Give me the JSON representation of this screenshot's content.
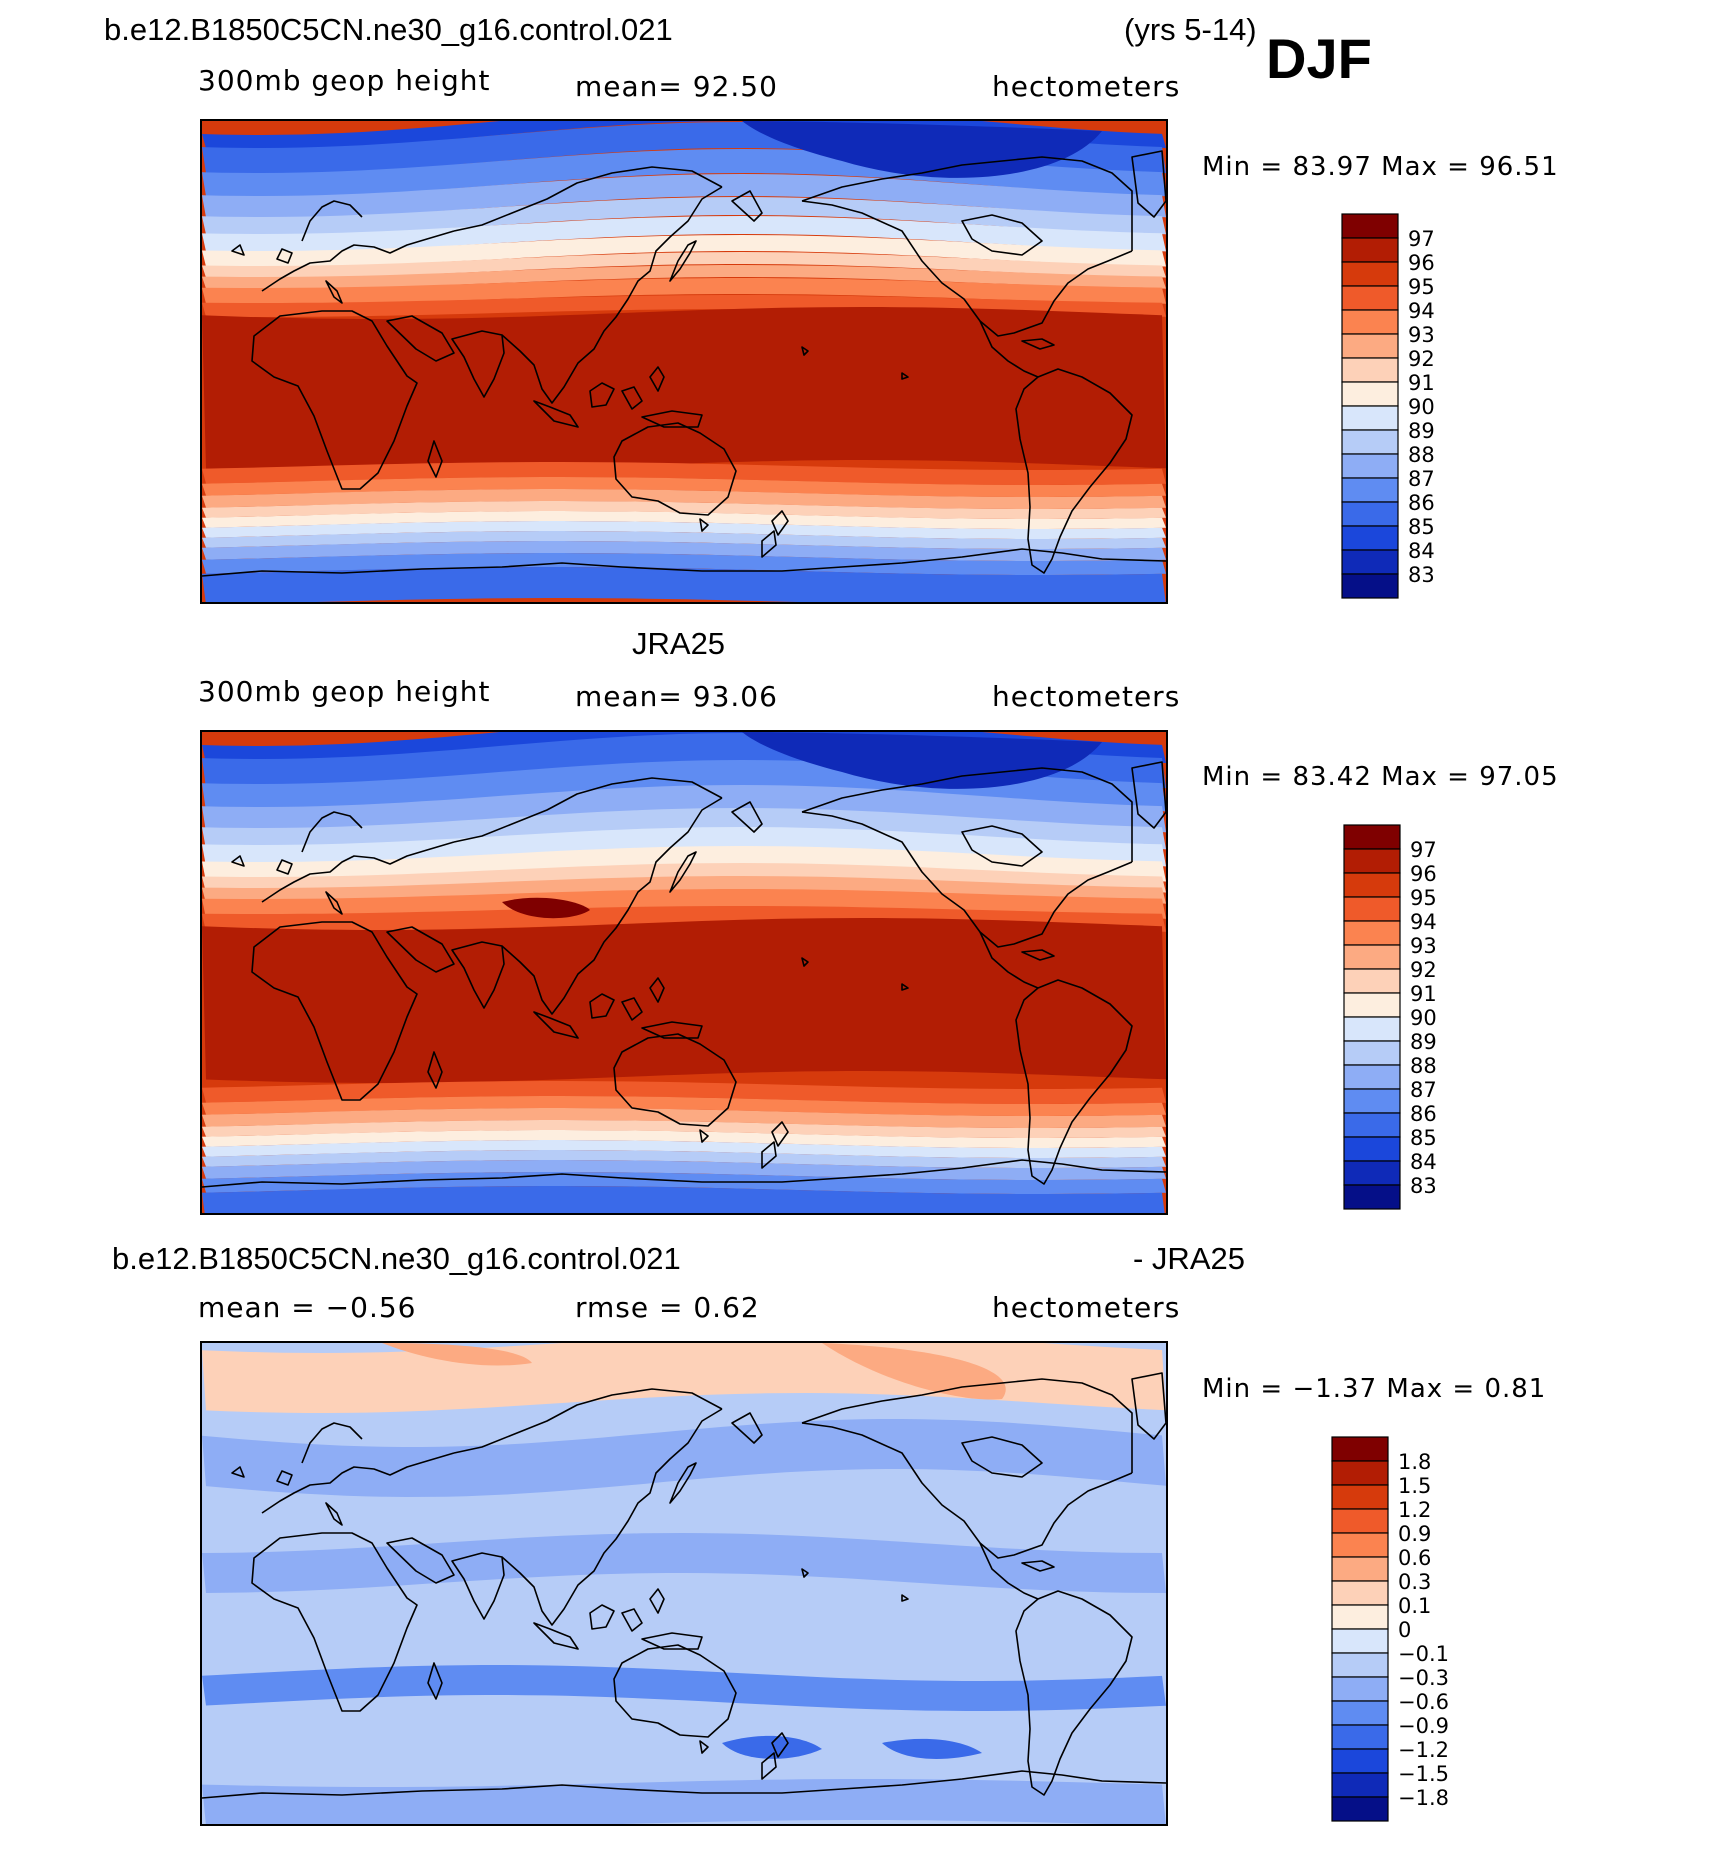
{
  "figure": {
    "title_case": "b.e12.B1850C5CN.ne30_g16.control.021",
    "years": "(yrs 5-14)",
    "season": "DJF"
  },
  "panels": [
    {
      "id": "model",
      "heading": "",
      "left_label": "300mb  geop  height",
      "center_label": "mean=   92.50",
      "right_label": "hectometers",
      "minmax": "Min  =    83.97  Max  =    96.51"
    },
    {
      "id": "obs",
      "heading": "JRA25",
      "left_label": "300mb  geop  height",
      "center_label": "mean=   93.06",
      "right_label": "hectometers",
      "minmax": "Min  =    83.42  Max  =    97.05"
    },
    {
      "id": "diff",
      "heading_left": "b.e12.B1850C5CN.ne30_g16.control.021",
      "heading_right": "- JRA25",
      "left_label": "mean  =   −0.56",
      "center_label": "rmse  =    0.62",
      "right_label": "hectometers",
      "minmax": "Min  =   −1.37  Max  =     0.81"
    }
  ],
  "chart_data": [
    {
      "type": "filled-contour-map",
      "title": "b.e12.B1850C5CN.ne30_g16.control.021  300mb geop height DJF (yrs 5-14)",
      "units": "hectometers",
      "mean": 92.5,
      "min": 83.97,
      "max": 96.51,
      "colorbar_levels": [
        "97",
        "96",
        "95",
        "94",
        "93",
        "92",
        "91",
        "90",
        "89",
        "88",
        "87",
        "86",
        "85",
        "84",
        "83"
      ],
      "colorbar_colors": [
        "#7f0000",
        "#b21d04",
        "#d63a0c",
        "#ef5a2a",
        "#fb8350",
        "#fcaa82",
        "#fdd1b8",
        "#fdeedf",
        "#d8e6fb",
        "#b6ccf7",
        "#8eadf5",
        "#5f8cf2",
        "#3a6ae9",
        "#1b47db",
        "#0f2ab8",
        "#050f88"
      ]
    },
    {
      "type": "filled-contour-map",
      "title": "JRA25  300mb geop height DJF",
      "units": "hectometers",
      "mean": 93.06,
      "min": 83.42,
      "max": 97.05,
      "colorbar_levels": [
        "97",
        "96",
        "95",
        "94",
        "93",
        "92",
        "91",
        "90",
        "89",
        "88",
        "87",
        "86",
        "85",
        "84",
        "83"
      ],
      "colorbar_colors": [
        "#7f0000",
        "#b21d04",
        "#d63a0c",
        "#ef5a2a",
        "#fb8350",
        "#fcaa82",
        "#fdd1b8",
        "#fdeedf",
        "#d8e6fb",
        "#b6ccf7",
        "#8eadf5",
        "#5f8cf2",
        "#3a6ae9",
        "#1b47db",
        "#0f2ab8",
        "#050f88"
      ]
    },
    {
      "type": "filled-contour-map",
      "title": "b.e12.B1850C5CN.ne30_g16.control.021 - JRA25",
      "units": "hectometers",
      "mean": -0.56,
      "rmse": 0.62,
      "min": -1.37,
      "max": 0.81,
      "colorbar_levels": [
        "1.8",
        "1.5",
        "1.2",
        "0.9",
        "0.6",
        "0.3",
        "0.1",
        "0",
        "−0.1",
        "−0.3",
        "−0.6",
        "−0.9",
        "−1.2",
        "−1.5",
        "−1.8"
      ],
      "colorbar_colors": [
        "#7f0000",
        "#b21d04",
        "#d63a0c",
        "#ef5a2a",
        "#fb8350",
        "#fcaa82",
        "#fdd1b8",
        "#fdeedf",
        "#d8e6fb",
        "#b6ccf7",
        "#8eadf5",
        "#5f8cf2",
        "#3a6ae9",
        "#1b47db",
        "#0f2ab8",
        "#050f88"
      ]
    }
  ]
}
